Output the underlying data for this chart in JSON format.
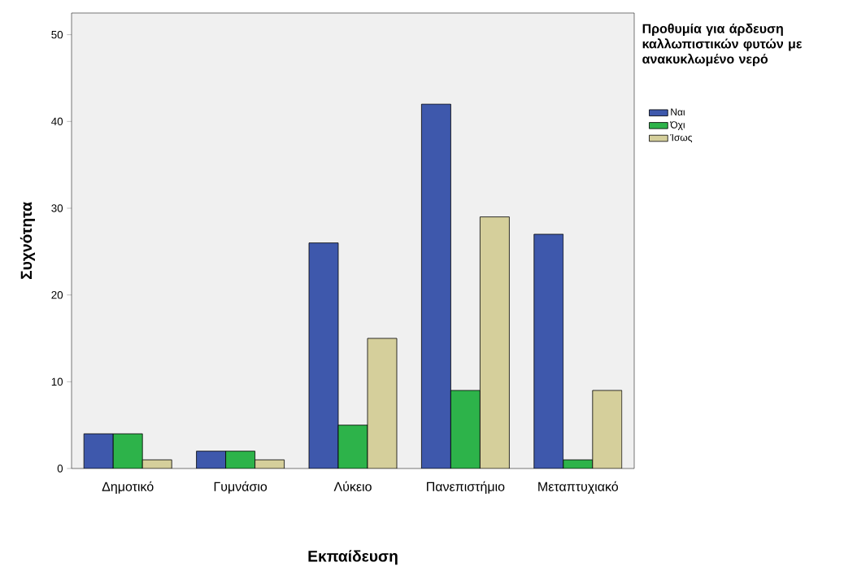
{
  "chart_data": {
    "type": "bar",
    "xlabel": "Εκπαίδευση",
    "ylabel": "Συχνότητα",
    "legend_title": "Προθυμία για άρδευση καλλωπιστικών φυτών με ανακυκλωμένο νερό",
    "categories": [
      "Δημοτικό",
      "Γυμνάσιο",
      "Λύκειο",
      "Πανεπιστήμιο",
      "Μεταπτυχιακό"
    ],
    "series": [
      {
        "name": "Ναι",
        "color": "#3e58ac",
        "values": [
          4,
          2,
          26,
          42,
          27
        ]
      },
      {
        "name": "Όχι",
        "color": "#2db34a",
        "values": [
          4,
          2,
          5,
          9,
          1
        ]
      },
      {
        "name": "Ίσως",
        "color": "#d5cf9b",
        "values": [
          1,
          1,
          15,
          29,
          9
        ]
      }
    ],
    "ylim": [
      0,
      52.5
    ],
    "yticks": [
      0,
      10,
      20,
      30,
      40,
      50
    ],
    "grid": false,
    "legend": "right"
  }
}
